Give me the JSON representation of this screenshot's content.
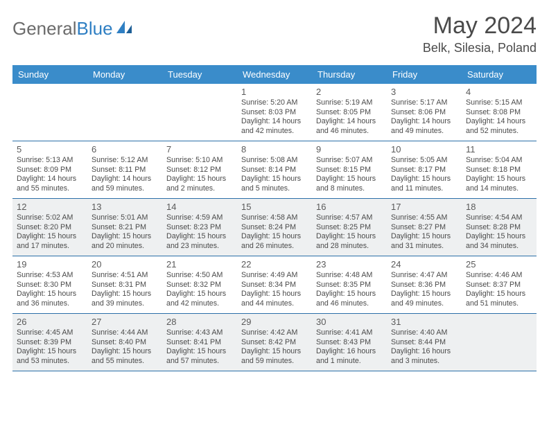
{
  "logo": {
    "text1": "General",
    "text2": "Blue"
  },
  "title": "May 2024",
  "location": "Belk, Silesia, Poland",
  "colors": {
    "header_bg": "#3a8cca",
    "row_border": "#2a6fa8",
    "alt_bg": "#eef0f1",
    "page_bg": "#ffffff",
    "text": "#4a4a4a",
    "logo_gray": "#6b6b6b",
    "logo_blue": "#2f7fc3"
  },
  "weekdays": [
    "Sunday",
    "Monday",
    "Tuesday",
    "Wednesday",
    "Thursday",
    "Friday",
    "Saturday"
  ],
  "weeks": [
    {
      "alt": false,
      "days": [
        {
          "n": "",
          "sr": "",
          "ss": "",
          "d1": "",
          "d2": ""
        },
        {
          "n": "",
          "sr": "",
          "ss": "",
          "d1": "",
          "d2": ""
        },
        {
          "n": "",
          "sr": "",
          "ss": "",
          "d1": "",
          "d2": ""
        },
        {
          "n": "1",
          "sr": "Sunrise: 5:20 AM",
          "ss": "Sunset: 8:03 PM",
          "d1": "Daylight: 14 hours",
          "d2": "and 42 minutes."
        },
        {
          "n": "2",
          "sr": "Sunrise: 5:19 AM",
          "ss": "Sunset: 8:05 PM",
          "d1": "Daylight: 14 hours",
          "d2": "and 46 minutes."
        },
        {
          "n": "3",
          "sr": "Sunrise: 5:17 AM",
          "ss": "Sunset: 8:06 PM",
          "d1": "Daylight: 14 hours",
          "d2": "and 49 minutes."
        },
        {
          "n": "4",
          "sr": "Sunrise: 5:15 AM",
          "ss": "Sunset: 8:08 PM",
          "d1": "Daylight: 14 hours",
          "d2": "and 52 minutes."
        }
      ]
    },
    {
      "alt": false,
      "days": [
        {
          "n": "5",
          "sr": "Sunrise: 5:13 AM",
          "ss": "Sunset: 8:09 PM",
          "d1": "Daylight: 14 hours",
          "d2": "and 55 minutes."
        },
        {
          "n": "6",
          "sr": "Sunrise: 5:12 AM",
          "ss": "Sunset: 8:11 PM",
          "d1": "Daylight: 14 hours",
          "d2": "and 59 minutes."
        },
        {
          "n": "7",
          "sr": "Sunrise: 5:10 AM",
          "ss": "Sunset: 8:12 PM",
          "d1": "Daylight: 15 hours",
          "d2": "and 2 minutes."
        },
        {
          "n": "8",
          "sr": "Sunrise: 5:08 AM",
          "ss": "Sunset: 8:14 PM",
          "d1": "Daylight: 15 hours",
          "d2": "and 5 minutes."
        },
        {
          "n": "9",
          "sr": "Sunrise: 5:07 AM",
          "ss": "Sunset: 8:15 PM",
          "d1": "Daylight: 15 hours",
          "d2": "and 8 minutes."
        },
        {
          "n": "10",
          "sr": "Sunrise: 5:05 AM",
          "ss": "Sunset: 8:17 PM",
          "d1": "Daylight: 15 hours",
          "d2": "and 11 minutes."
        },
        {
          "n": "11",
          "sr": "Sunrise: 5:04 AM",
          "ss": "Sunset: 8:18 PM",
          "d1": "Daylight: 15 hours",
          "d2": "and 14 minutes."
        }
      ]
    },
    {
      "alt": true,
      "days": [
        {
          "n": "12",
          "sr": "Sunrise: 5:02 AM",
          "ss": "Sunset: 8:20 PM",
          "d1": "Daylight: 15 hours",
          "d2": "and 17 minutes."
        },
        {
          "n": "13",
          "sr": "Sunrise: 5:01 AM",
          "ss": "Sunset: 8:21 PM",
          "d1": "Daylight: 15 hours",
          "d2": "and 20 minutes."
        },
        {
          "n": "14",
          "sr": "Sunrise: 4:59 AM",
          "ss": "Sunset: 8:23 PM",
          "d1": "Daylight: 15 hours",
          "d2": "and 23 minutes."
        },
        {
          "n": "15",
          "sr": "Sunrise: 4:58 AM",
          "ss": "Sunset: 8:24 PM",
          "d1": "Daylight: 15 hours",
          "d2": "and 26 minutes."
        },
        {
          "n": "16",
          "sr": "Sunrise: 4:57 AM",
          "ss": "Sunset: 8:25 PM",
          "d1": "Daylight: 15 hours",
          "d2": "and 28 minutes."
        },
        {
          "n": "17",
          "sr": "Sunrise: 4:55 AM",
          "ss": "Sunset: 8:27 PM",
          "d1": "Daylight: 15 hours",
          "d2": "and 31 minutes."
        },
        {
          "n": "18",
          "sr": "Sunrise: 4:54 AM",
          "ss": "Sunset: 8:28 PM",
          "d1": "Daylight: 15 hours",
          "d2": "and 34 minutes."
        }
      ]
    },
    {
      "alt": false,
      "days": [
        {
          "n": "19",
          "sr": "Sunrise: 4:53 AM",
          "ss": "Sunset: 8:30 PM",
          "d1": "Daylight: 15 hours",
          "d2": "and 36 minutes."
        },
        {
          "n": "20",
          "sr": "Sunrise: 4:51 AM",
          "ss": "Sunset: 8:31 PM",
          "d1": "Daylight: 15 hours",
          "d2": "and 39 minutes."
        },
        {
          "n": "21",
          "sr": "Sunrise: 4:50 AM",
          "ss": "Sunset: 8:32 PM",
          "d1": "Daylight: 15 hours",
          "d2": "and 42 minutes."
        },
        {
          "n": "22",
          "sr": "Sunrise: 4:49 AM",
          "ss": "Sunset: 8:34 PM",
          "d1": "Daylight: 15 hours",
          "d2": "and 44 minutes."
        },
        {
          "n": "23",
          "sr": "Sunrise: 4:48 AM",
          "ss": "Sunset: 8:35 PM",
          "d1": "Daylight: 15 hours",
          "d2": "and 46 minutes."
        },
        {
          "n": "24",
          "sr": "Sunrise: 4:47 AM",
          "ss": "Sunset: 8:36 PM",
          "d1": "Daylight: 15 hours",
          "d2": "and 49 minutes."
        },
        {
          "n": "25",
          "sr": "Sunrise: 4:46 AM",
          "ss": "Sunset: 8:37 PM",
          "d1": "Daylight: 15 hours",
          "d2": "and 51 minutes."
        }
      ]
    },
    {
      "alt": true,
      "days": [
        {
          "n": "26",
          "sr": "Sunrise: 4:45 AM",
          "ss": "Sunset: 8:39 PM",
          "d1": "Daylight: 15 hours",
          "d2": "and 53 minutes."
        },
        {
          "n": "27",
          "sr": "Sunrise: 4:44 AM",
          "ss": "Sunset: 8:40 PM",
          "d1": "Daylight: 15 hours",
          "d2": "and 55 minutes."
        },
        {
          "n": "28",
          "sr": "Sunrise: 4:43 AM",
          "ss": "Sunset: 8:41 PM",
          "d1": "Daylight: 15 hours",
          "d2": "and 57 minutes."
        },
        {
          "n": "29",
          "sr": "Sunrise: 4:42 AM",
          "ss": "Sunset: 8:42 PM",
          "d1": "Daylight: 15 hours",
          "d2": "and 59 minutes."
        },
        {
          "n": "30",
          "sr": "Sunrise: 4:41 AM",
          "ss": "Sunset: 8:43 PM",
          "d1": "Daylight: 16 hours",
          "d2": "and 1 minute."
        },
        {
          "n": "31",
          "sr": "Sunrise: 4:40 AM",
          "ss": "Sunset: 8:44 PM",
          "d1": "Daylight: 16 hours",
          "d2": "and 3 minutes."
        },
        {
          "n": "",
          "sr": "",
          "ss": "",
          "d1": "",
          "d2": ""
        }
      ]
    }
  ]
}
